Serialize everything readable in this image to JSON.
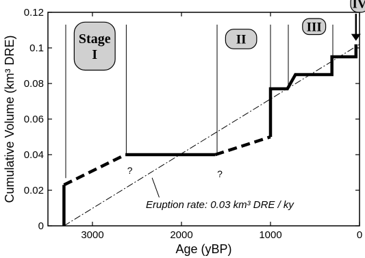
{
  "chart_data": {
    "type": "line",
    "xlabel": "Age (yBP)",
    "ylabel": "Cumulative Volume (km³ DRE)",
    "xlim": [
      3500,
      0
    ],
    "ylim": [
      0,
      0.12
    ],
    "x_reversed": true,
    "grid": false,
    "x_ticks": [
      {
        "value": 3000,
        "label": "3000"
      },
      {
        "value": 2000,
        "label": "2000"
      },
      {
        "value": 1000,
        "label": "1000"
      },
      {
        "value": 0,
        "label": "0"
      }
    ],
    "y_ticks": [
      {
        "value": 0,
        "label": "0"
      },
      {
        "value": 0.02,
        "label": "0.02"
      },
      {
        "value": 0.04,
        "label": "0.04"
      },
      {
        "value": 0.06,
        "label": "0.06"
      },
      {
        "value": 0.08,
        "label": "0.08"
      },
      {
        "value": 0.1,
        "label": "0.1"
      },
      {
        "value": 0.12,
        "label": "0.12"
      }
    ],
    "series": [
      {
        "style": "solid",
        "points": [
          [
            3320,
            0
          ],
          [
            3320,
            0.023
          ]
        ]
      },
      {
        "style": "dashed",
        "points": [
          [
            3320,
            0.023
          ],
          [
            2630,
            0.04
          ]
        ]
      },
      {
        "style": "solid",
        "points": [
          [
            2630,
            0.04
          ],
          [
            1620,
            0.04
          ]
        ]
      },
      {
        "style": "dashed",
        "points": [
          [
            1620,
            0.04
          ],
          [
            1000,
            0.05
          ]
        ]
      },
      {
        "style": "solid",
        "points": [
          [
            1000,
            0.05
          ],
          [
            1000,
            0.077
          ],
          [
            810,
            0.077
          ],
          [
            720,
            0.085
          ],
          [
            310,
            0.085
          ],
          [
            310,
            0.095
          ],
          [
            40,
            0.095
          ],
          [
            40,
            0.102
          ]
        ]
      }
    ],
    "trend_line": {
      "style": "dash-dot",
      "points": [
        [
          3320,
          0
        ],
        [
          0,
          0.102
        ]
      ]
    },
    "stage_boundaries": [
      3300,
      2620,
      1600,
      1000,
      800,
      300
    ],
    "stages": [
      {
        "id": "stage-I",
        "lines": [
          "Stage",
          "I"
        ],
        "center_x": 2975,
        "center_y": 0.101,
        "width": 460,
        "height": 0.027
      },
      {
        "id": "stage-II",
        "lines": [
          "II"
        ],
        "center_x": 1330,
        "center_y": 0.105,
        "width": 350,
        "height": 0.011
      },
      {
        "id": "stage-III",
        "lines": [
          "III"
        ],
        "center_x": 510,
        "center_y": 0.112,
        "width": 260,
        "height": 0.009
      },
      {
        "id": "stage-IV",
        "lines": [
          "IV"
        ],
        "center_x": 0,
        "center_y": 0.125,
        "width": 200,
        "height": 0.01
      }
    ],
    "question_marks": [
      {
        "label": "?",
        "x": 2610,
        "y": 0.035
      },
      {
        "label": "?",
        "x": 1600,
        "y": 0.033
      }
    ],
    "annotation": {
      "text": "Eruption rate: 0.03 km³ DRE / ky",
      "text_x": 2400,
      "text_y": 0.012,
      "leader": [
        [
          2250,
          0.016
        ],
        [
          2330,
          0.027
        ]
      ]
    },
    "arrow": {
      "x": 40,
      "from_y": 0.12,
      "to_y": 0.104
    }
  }
}
